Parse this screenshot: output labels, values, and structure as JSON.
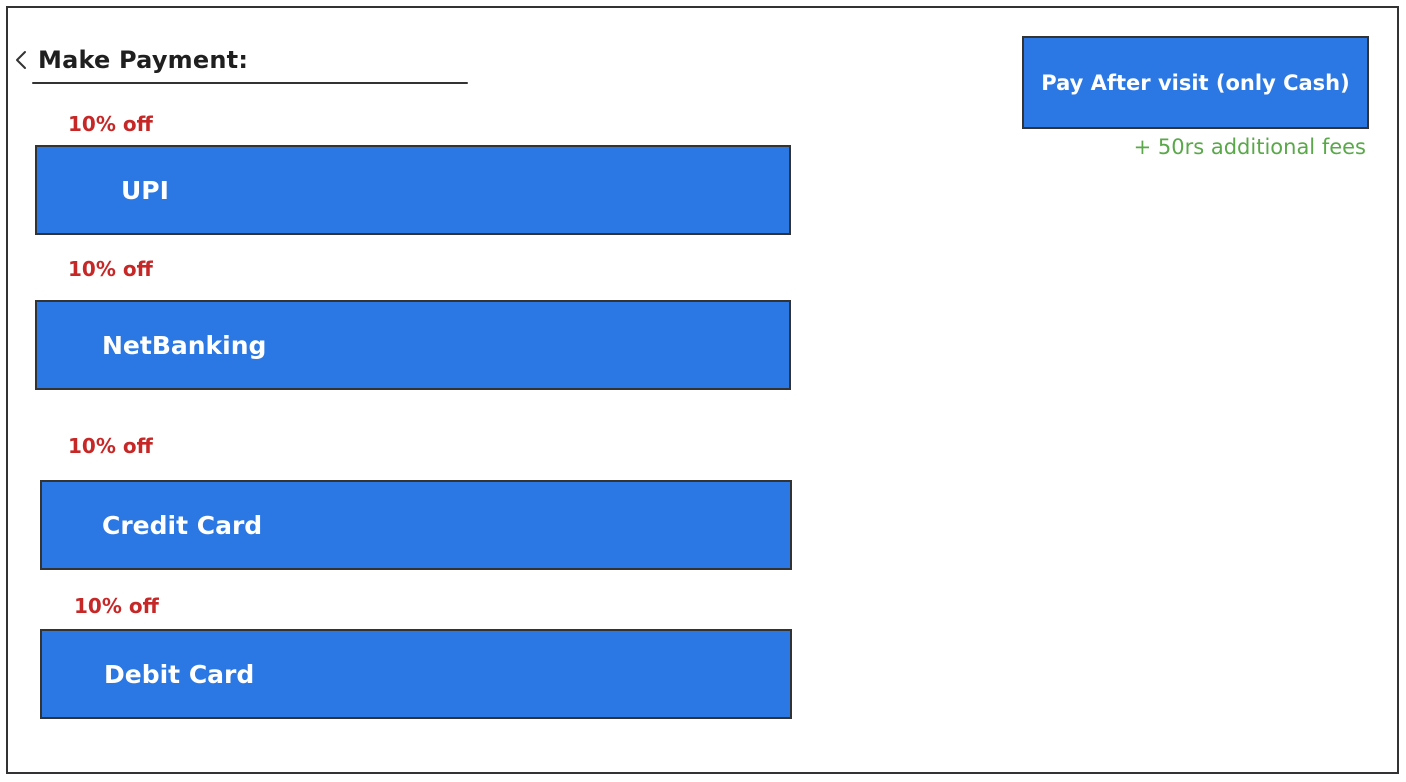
{
  "header": {
    "title": "Make Payment:",
    "back_icon": "chevron-left-icon"
  },
  "payment_options": [
    {
      "offer": "10% off",
      "label": "UPI"
    },
    {
      "offer": "10% off",
      "label": "NetBanking"
    },
    {
      "offer": "10% off",
      "label": "Credit Card"
    },
    {
      "offer": "10% off",
      "label": "Debit Card"
    }
  ],
  "pay_after_visit": {
    "label": "Pay After visit (only Cash)",
    "note": "+ 50rs additional fees"
  },
  "colors": {
    "button_blue": "#2b78e4",
    "offer_red": "#c62828",
    "fee_green": "#5aa84a",
    "border": "#333333"
  }
}
